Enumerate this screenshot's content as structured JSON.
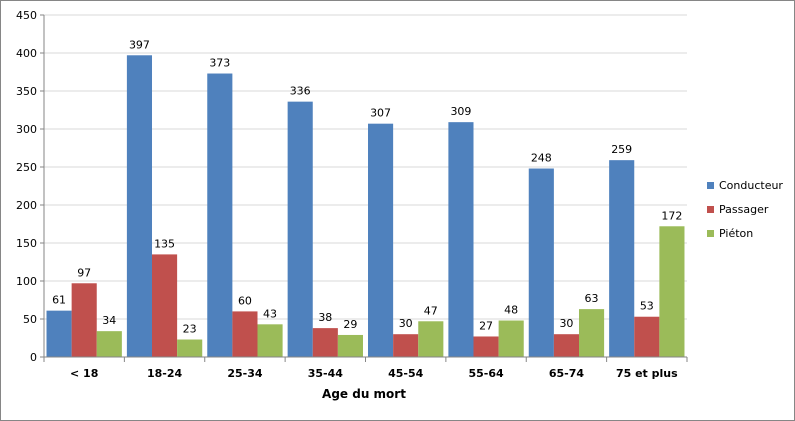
{
  "chart_data": {
    "type": "bar",
    "title": "",
    "xlabel": "Age du mort",
    "ylabel": "",
    "ylim": [
      0,
      450
    ],
    "yticks": [
      0,
      50,
      100,
      150,
      200,
      250,
      300,
      350,
      400,
      450
    ],
    "grid": true,
    "legend_position": "right",
    "categories": [
      "< 18",
      "18-24",
      "25-34",
      "35-44",
      "45-54",
      "55-64",
      "65-74",
      "75 et plus"
    ],
    "series": [
      {
        "name": "Conducteur",
        "color": "#4f81bd",
        "values": [
          61,
          397,
          373,
          336,
          307,
          309,
          248,
          259
        ]
      },
      {
        "name": "Passager",
        "color": "#c0504d",
        "values": [
          97,
          135,
          60,
          38,
          30,
          27,
          30,
          53
        ]
      },
      {
        "name": "Piéton",
        "color": "#9bbb59",
        "values": [
          34,
          23,
          43,
          29,
          47,
          48,
          63,
          172
        ]
      }
    ]
  }
}
